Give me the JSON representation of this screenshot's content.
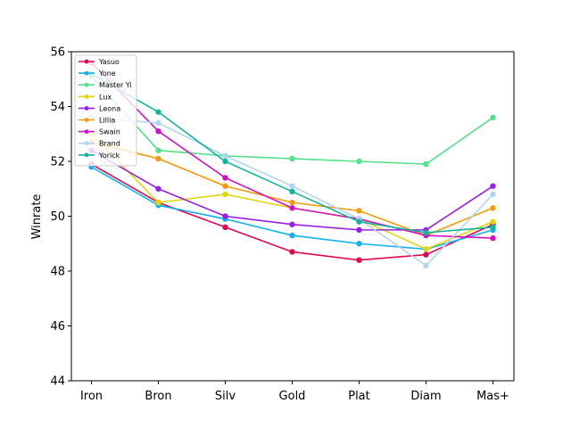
{
  "chart_data": {
    "type": "line",
    "title": "",
    "xlabel": "",
    "ylabel": "Winrate",
    "categories": [
      "Iron",
      "Bron",
      "Silv",
      "Gold",
      "Plat",
      "Diam",
      "Mas+"
    ],
    "ylim": [
      44,
      56
    ],
    "yticks": [
      44,
      46,
      48,
      50,
      52,
      54,
      56
    ],
    "grid": false,
    "legend_position": "top-left",
    "series": [
      {
        "name": "Yasuo",
        "color": "#e0094f",
        "values": [
          51.9,
          50.5,
          49.6,
          48.7,
          48.4,
          48.6,
          49.7
        ]
      },
      {
        "name": "Yone",
        "color": "#12b0ec",
        "values": [
          51.8,
          50.4,
          49.9,
          49.3,
          49.0,
          48.8,
          49.5
        ]
      },
      {
        "name": "Master Yi",
        "color": "#55e08a",
        "values": [
          55.1,
          52.4,
          52.2,
          52.1,
          52.0,
          51.9,
          53.6
        ]
      },
      {
        "name": "Lux",
        "color": "#e3d50c",
        "values": [
          53.0,
          50.5,
          50.8,
          50.3,
          49.9,
          48.8,
          49.8
        ]
      },
      {
        "name": "Leona",
        "color": "#9a1fe6",
        "values": [
          52.4,
          51.0,
          50.0,
          49.7,
          49.5,
          49.5,
          51.1
        ]
      },
      {
        "name": "Lillia",
        "color": "#f49b0b",
        "values": [
          52.7,
          52.1,
          51.1,
          50.5,
          50.2,
          49.3,
          50.3
        ]
      },
      {
        "name": "Swain",
        "color": "#d211c0",
        "values": [
          55.6,
          53.1,
          51.4,
          50.3,
          49.9,
          49.3,
          49.2
        ]
      },
      {
        "name": "Brand",
        "color": "#b0d3f6",
        "values": [
          53.6,
          53.4,
          52.2,
          51.1,
          49.9,
          48.2,
          50.8
        ]
      },
      {
        "name": "Yorick",
        "color": "#0fb59f",
        "values": [
          55.2,
          53.8,
          52.0,
          50.9,
          49.8,
          49.4,
          49.6
        ]
      }
    ]
  }
}
